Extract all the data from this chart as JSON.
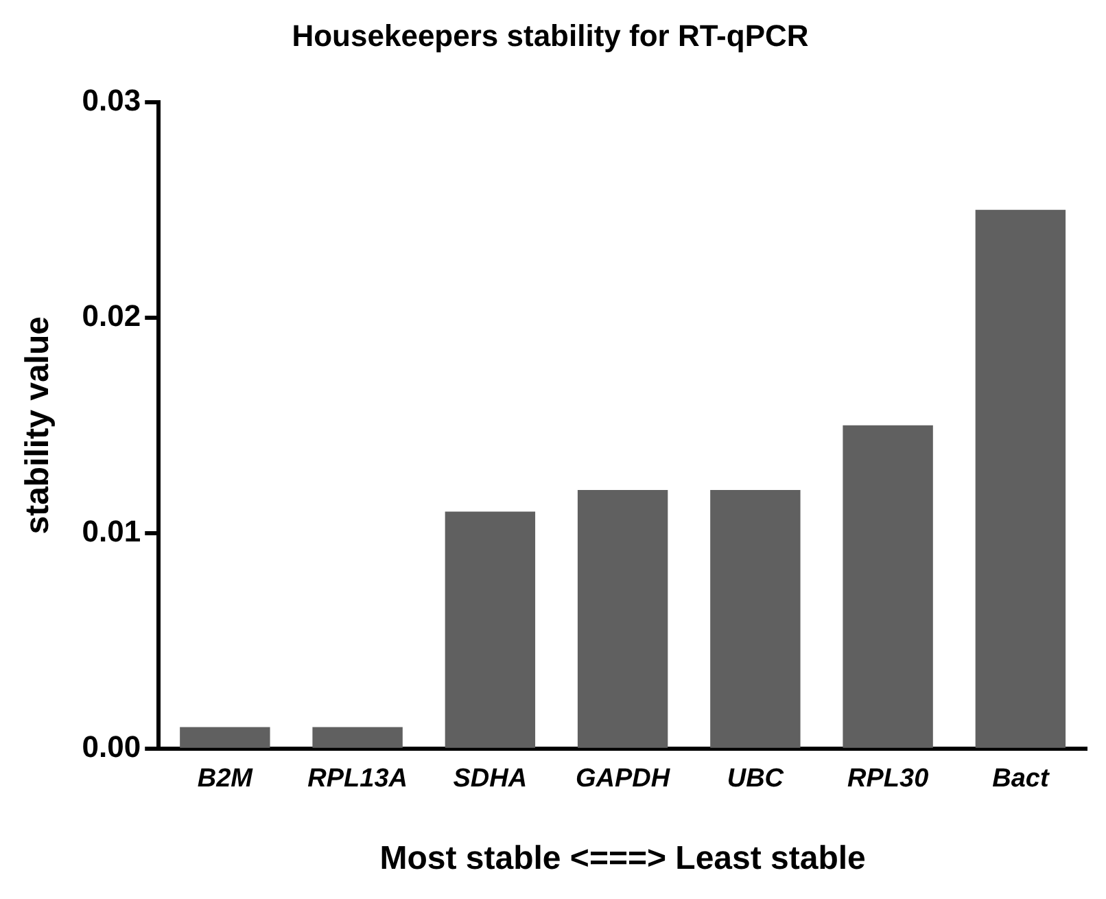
{
  "chart_data": {
    "type": "bar",
    "title": "Housekeepers stability for RT-qPCR",
    "xlabel": "Most stable <===> Least stable",
    "ylabel": "stability value",
    "categories": [
      "B2M",
      "RPL13A",
      "SDHA",
      "GAPDH",
      "UBC",
      "RPL30",
      "Bact"
    ],
    "values": [
      0.001,
      0.001,
      0.011,
      0.012,
      0.012,
      0.015,
      0.025
    ],
    "color": "#606060",
    "ylim": [
      0,
      0.03
    ],
    "yticks": [
      {
        "value": 0,
        "label": "0.00"
      },
      {
        "value": 0.01,
        "label": "0.01"
      },
      {
        "value": 0.02,
        "label": "0.02"
      },
      {
        "value": 0.03,
        "label": "0.03"
      }
    ],
    "grid": false,
    "legend": false
  }
}
